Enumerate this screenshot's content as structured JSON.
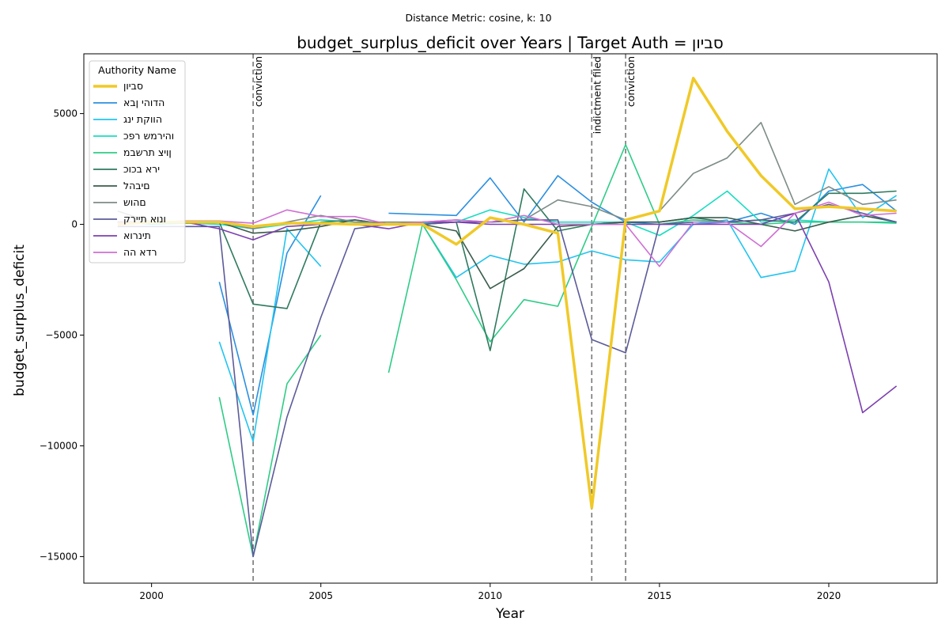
{
  "colors": {
    "target": "#f0c928",
    "series": [
      "#2b8fe0",
      "#22c4f0",
      "#19ddc0",
      "#2ecc86",
      "#2f7a5e",
      "#3a5c4c",
      "#7d8c88",
      "#5c5b9a",
      "#7c3fb0",
      "#cf6fd4"
    ],
    "event_line": "#777777"
  },
  "chart_data": {
    "type": "line",
    "suptitle": "Distance Metric: cosine, k: 10",
    "title": "budget_surplus_deficit over Years | Target Auth = סביון",
    "xlabel": "Year",
    "ylabel": "budget_surplus_deficit",
    "xlim": [
      1998,
      2023.2
    ],
    "ylim": [
      -16200,
      7700
    ],
    "xticks": [
      2000,
      2005,
      2010,
      2015,
      2020
    ],
    "yticks": [
      5000,
      0,
      -5000,
      -10000,
      -15000
    ],
    "ytick_labels": [
      "5000",
      "0",
      "−5000",
      "−10000",
      "−15000"
    ],
    "grid": false,
    "legend": {
      "title": "Authority Name",
      "placement": "top-left"
    },
    "events": [
      {
        "x": 2003,
        "label": "conviction"
      },
      {
        "x": 2013,
        "label": "indictment filed"
      },
      {
        "x": 2014,
        "label": "conviction"
      }
    ],
    "series": [
      {
        "name": "סביון",
        "target": true,
        "colorIndex": -1,
        "x": [
          1999,
          2000,
          2001,
          2002,
          2003,
          2004,
          2005,
          2006,
          2007,
          2008,
          2009,
          2010,
          2011,
          2012,
          2013,
          2014,
          2015,
          2016,
          2017,
          2018,
          2019,
          2020,
          2021,
          2022
        ],
        "y": [
          0,
          100,
          100,
          100,
          -100,
          50,
          50,
          0,
          0,
          0,
          -900,
          300,
          0,
          -400,
          -12800,
          200,
          600,
          6600,
          4200,
          2200,
          700,
          800,
          700,
          600
        ]
      },
      {
        "name": "הדוהי ןבא",
        "colorIndex": 0,
        "x": [
          2002,
          2003,
          2004,
          2005,
          null,
          2007,
          2009,
          2010,
          2011,
          2012,
          2013,
          2014,
          2015,
          2016,
          2017,
          2018,
          2019,
          2020,
          2021,
          2022
        ],
        "y": [
          -2600,
          -8600,
          -1300,
          1300,
          null,
          500,
          400,
          2100,
          100,
          2200,
          1000,
          100,
          0,
          0,
          100,
          500,
          0,
          1500,
          1800,
          600
        ]
      },
      {
        "name": "הווקת ינג",
        "colorIndex": 1,
        "x": [
          2002,
          2003,
          2004,
          2005,
          null,
          2008,
          2009,
          2010,
          2011,
          2012,
          2013,
          2014,
          2015,
          2016,
          2017,
          2018,
          2019,
          2020,
          2021,
          2022
        ],
        "y": [
          -5300,
          -9800,
          -200,
          -1900,
          null,
          0,
          -2400,
          -1400,
          -1800,
          -1700,
          -1200,
          -1600,
          -1700,
          0,
          200,
          -2400,
          -2100,
          2500,
          300,
          1300
        ]
      },
      {
        "name": "והירמש רפכ",
        "colorIndex": 2,
        "x": [
          1999,
          2000,
          2001,
          2002,
          2003,
          2004,
          2005,
          2006,
          2007,
          2008,
          2009,
          2010,
          2011,
          2012,
          2013,
          2014,
          2015,
          2016,
          2017,
          2018,
          2019,
          2020,
          2021,
          2022
        ],
        "y": [
          100,
          0,
          50,
          0,
          -200,
          0,
          200,
          100,
          0,
          50,
          100,
          650,
          300,
          100,
          100,
          100,
          -500,
          400,
          1500,
          100,
          200,
          100,
          100,
          100
        ]
      },
      {
        "name": "ןויצ תרשבמ",
        "colorIndex": 3,
        "x": [
          2002,
          2003,
          2004,
          2005,
          null,
          2007,
          2008,
          2009,
          2010,
          2011,
          2012,
          2013,
          2014,
          2015,
          2016,
          2017,
          2018,
          2019,
          2020,
          2021,
          2022
        ],
        "y": [
          -7800,
          -15000,
          -7200,
          -5000,
          null,
          -6700,
          0,
          -2500,
          -5300,
          -3400,
          -3700,
          -100,
          3600,
          0,
          200,
          100,
          0,
          100,
          100,
          100,
          50
        ]
      },
      {
        "name": "ירא בכוכ",
        "colorIndex": 4,
        "x": [
          1999,
          2000,
          2001,
          2002,
          2003,
          2004,
          2005,
          2006,
          2007,
          2008,
          2009,
          2010,
          2011,
          2012,
          2013,
          2014,
          2015,
          2016,
          2017,
          2018,
          2019,
          2020,
          2021,
          2022
        ],
        "y": [
          100,
          100,
          50,
          100,
          -3600,
          -3800,
          100,
          200,
          0,
          0,
          100,
          -5700,
          1600,
          -300,
          0,
          100,
          100,
          300,
          100,
          200,
          100,
          1400,
          1400,
          1500
        ]
      },
      {
        "name": "םיבהל",
        "colorIndex": 5,
        "x": [
          1999,
          2000,
          2001,
          2002,
          2003,
          2004,
          2005,
          2006,
          2007,
          2008,
          2009,
          2010,
          2011,
          2012,
          2013,
          2014,
          2015,
          2016,
          2017,
          2018,
          2019,
          2020,
          2021,
          2022
        ],
        "y": [
          100,
          100,
          100,
          100,
          -400,
          -300,
          -100,
          200,
          0,
          0,
          -300,
          -2900,
          -2000,
          -100,
          0,
          100,
          100,
          300,
          300,
          0,
          -300,
          100,
          400,
          100
        ]
      },
      {
        "name": "םהוש",
        "colorIndex": 6,
        "x": [
          1999,
          2000,
          2001,
          2002,
          2003,
          2004,
          2005,
          2006,
          2007,
          2008,
          2009,
          2010,
          2011,
          2012,
          2013,
          2014,
          2015,
          2016,
          2017,
          2018,
          2019,
          2020,
          2021,
          2022
        ],
        "y": [
          600,
          100,
          100,
          100,
          -200,
          100,
          400,
          100,
          100,
          100,
          200,
          100,
          200,
          1100,
          800,
          200,
          600,
          2300,
          3000,
          4600,
          900,
          1700,
          900,
          1100
        ]
      },
      {
        "name": "ונוא תיירק",
        "colorIndex": 7,
        "x": [
          1999,
          2000,
          2001,
          2002,
          2003,
          2004,
          2005,
          2006,
          2007,
          2008,
          2009,
          2010,
          2011,
          2012,
          2013,
          2014,
          2015,
          2016,
          2017,
          2018,
          2019,
          2020,
          2021,
          2022
        ],
        "y": [
          -100,
          -100,
          -100,
          -100,
          -15000,
          -8700,
          -4200,
          -200,
          0,
          0,
          100,
          100,
          200,
          200,
          -5200,
          -5800,
          0,
          100,
          100,
          200,
          500,
          900,
          500,
          100
        ]
      },
      {
        "name": "תינרוא",
        "colorIndex": 8,
        "x": [
          1999,
          2000,
          2001,
          2002,
          2003,
          2004,
          2005,
          2006,
          2007,
          2008,
          2009,
          2010,
          2011,
          2012,
          2013,
          2014,
          2015,
          2016,
          2017,
          2018,
          2019,
          2020,
          2021,
          2022
        ],
        "y": [
          100,
          100,
          100,
          -200,
          -700,
          -100,
          0,
          0,
          -200,
          100,
          100,
          0,
          0,
          0,
          0,
          0,
          0,
          0,
          0,
          0,
          500,
          -2600,
          -8500,
          -7300
        ]
      },
      {
        "name": "רדא הה",
        "colorIndex": 9,
        "x": [
          1999,
          2000,
          2001,
          2002,
          2003,
          2004,
          2005,
          2006,
          2007,
          2008,
          2009,
          2010,
          2011,
          2012,
          2013,
          2014,
          2015,
          2016,
          2017,
          2018,
          2019,
          2020,
          2021,
          2022
        ],
        "y": [
          100,
          100,
          150,
          150,
          50,
          650,
          350,
          350,
          0,
          100,
          200,
          100,
          400,
          0,
          0,
          0,
          -1900,
          100,
          100,
          -1000,
          500,
          1000,
          400,
          500
        ]
      }
    ]
  }
}
